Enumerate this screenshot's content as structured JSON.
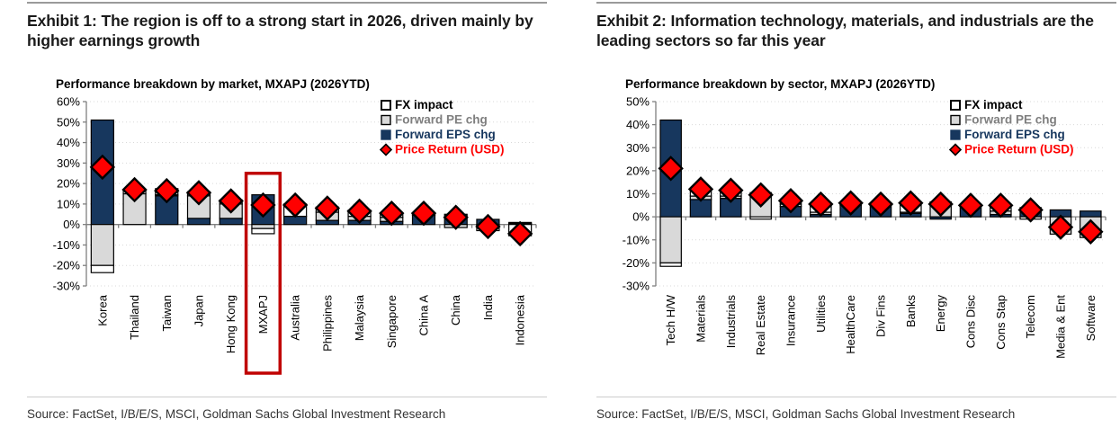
{
  "page": {
    "exhibit1": {
      "title": "Exhibit 1: The region is off to a strong start in 2026, driven mainly by higher earnings growth",
      "source": "Source: FactSet, I/B/E/S, MSCI, Goldman Sachs Global Investment Research"
    },
    "exhibit2": {
      "title": "Exhibit 2: Information technology, materials, and industrials are the leading sectors so far this year",
      "source": "Source: FactSet, I/B/E/S, MSCI, Goldman Sachs Global Investment Research"
    }
  },
  "colors": {
    "fx": "#FFFFFF",
    "pe": "#D9D9D9",
    "eps": "#17375E",
    "pr": "#FF0000",
    "fx_text": "#000000",
    "pe_text": "#7F7F7F",
    "eps_text": "#17375E",
    "pr_text": "#FF0000",
    "segment_border": "#000000",
    "axis": "#808080",
    "grid": "#D9D9D9",
    "highlight": "#C00000",
    "tick_text": "#000000"
  },
  "chart_data": [
    {
      "type": "bar",
      "title": "Performance breakdown by market, MXAPJ (2026YTD)",
      "ylim": [
        -30,
        60
      ],
      "ytick_labels": [
        "60%",
        "50%",
        "40%",
        "30%",
        "20%",
        "10%",
        "0%",
        "-10%",
        "-20%",
        "-30%"
      ],
      "grid": "dotted",
      "legend_position": "top-right",
      "categories": [
        "Korea",
        "Thailand",
        "Taiwan",
        "Japan",
        "Hong Kong",
        "MXAPJ",
        "Australia",
        "Philippines",
        "Malaysia",
        "Singapore",
        "China A",
        "China",
        "India",
        "Indonesia"
      ],
      "series": [
        {
          "key": "fx",
          "name": "FX impact",
          "marker": "square",
          "values": [
            -3.5,
            2,
            3,
            2,
            2,
            -2.5,
            6,
            2.5,
            3,
            2,
            0.5,
            0,
            -2.5,
            -5.5
          ]
        },
        {
          "key": "pe",
          "name": "Forward PE chg",
          "marker": "square",
          "values": [
            -20,
            15,
            0.5,
            11,
            7,
            -2,
            0,
            4,
            2,
            2,
            0.5,
            -1.5,
            -0.5,
            0.5
          ]
        },
        {
          "key": "eps",
          "name": "Forward EPS chg",
          "marker": "square",
          "values": [
            51,
            0,
            14,
            3,
            3,
            14.5,
            4,
            2,
            2,
            1.5,
            4.5,
            5,
            2.5,
            0.5
          ]
        },
        {
          "key": "pr",
          "name": "Price Return (USD)",
          "marker": "diamond",
          "values": [
            28,
            17,
            16.5,
            15.5,
            11.5,
            9.5,
            9.5,
            8,
            6.5,
            5.5,
            5.5,
            3.5,
            -1,
            -4.5
          ]
        }
      ],
      "highlight": {
        "category": "MXAPJ",
        "from_value": 25
      }
    },
    {
      "type": "bar",
      "title": "Performance breakdown by sector, MXAPJ (2026YTD)",
      "ylim": [
        -30,
        50
      ],
      "ytick_labels": [
        "50%",
        "40%",
        "30%",
        "20%",
        "10%",
        "0%",
        "-10%",
        "-20%",
        "-30%"
      ],
      "grid": "dotted",
      "legend_position": "top-right",
      "categories": [
        "Tech H/W",
        "Materials",
        "Industrials",
        "Real Estate",
        "Insurance",
        "Utilities",
        "HealthCare",
        "Div Fins",
        "Banks",
        "Energy",
        "Cons Disc",
        "Cons Stap",
        "Telecom",
        "Media & Ent",
        "Software"
      ],
      "series": [
        {
          "key": "fx",
          "name": "FX impact",
          "marker": "square",
          "values": [
            -1.5,
            3,
            2.5,
            -1,
            1.5,
            3.5,
            0.5,
            0.5,
            4.5,
            0.5,
            0,
            3,
            -1,
            0,
            0
          ]
        },
        {
          "key": "pe",
          "name": "Forward PE chg",
          "marker": "square",
          "values": [
            -20,
            1.5,
            1,
            10.5,
            1,
            1,
            0.5,
            0.5,
            0.5,
            6,
            0.5,
            1.5,
            0.5,
            -7.5,
            -9
          ]
        },
        {
          "key": "eps",
          "name": "Forward EPS chg",
          "marker": "square",
          "values": [
            42,
            7.5,
            8,
            0,
            4.5,
            1,
            5,
            5,
            1.5,
            -1,
            5,
            1,
            3.5,
            3,
            2.5
          ]
        },
        {
          "key": "pr",
          "name": "Price Return (USD)",
          "marker": "diamond",
          "values": [
            21,
            12,
            11.5,
            9.5,
            7,
            5.5,
            6,
            5.5,
            6,
            5.5,
            5,
            5,
            3,
            -4.5,
            -6.5
          ]
        }
      ],
      "highlight": null
    }
  ]
}
